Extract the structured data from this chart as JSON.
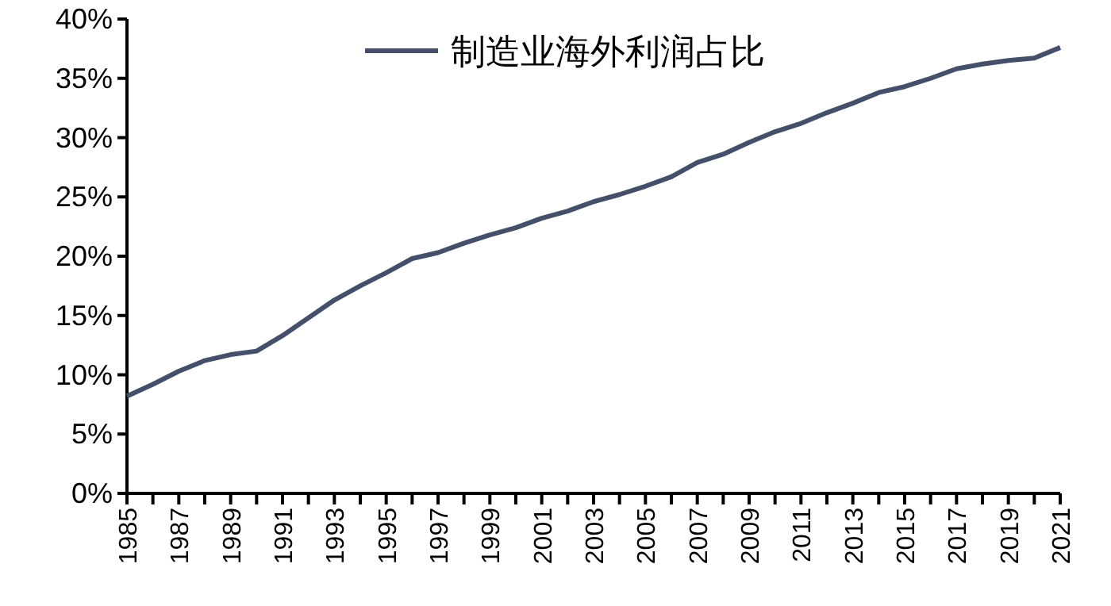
{
  "chart_data": {
    "type": "line",
    "categories": [
      "1985",
      null,
      "1987",
      null,
      "1989",
      null,
      "1991",
      null,
      "1993",
      null,
      "1995",
      null,
      "1997",
      null,
      "1999",
      null,
      "2001",
      null,
      "2003",
      null,
      "2005",
      null,
      "2007",
      null,
      "2009",
      null,
      "2011",
      null,
      "2013",
      null,
      "2015",
      null,
      "2017",
      null,
      "2019",
      null,
      "2021"
    ],
    "series": [
      {
        "name": "制造业海外利润占比",
        "color": "#44506a",
        "values": [
          8.2,
          9.2,
          10.3,
          11.2,
          11.7,
          12.0,
          13.3,
          14.8,
          16.3,
          17.5,
          18.6,
          19.8,
          20.3,
          21.1,
          21.8,
          22.4,
          23.2,
          23.8,
          24.6,
          25.2,
          25.9,
          26.7,
          27.9,
          28.6,
          29.6,
          30.5,
          31.2,
          32.1,
          32.9,
          33.8,
          34.3,
          35.0,
          35.8,
          36.2,
          36.5,
          36.7,
          37.6
        ]
      }
    ],
    "ylim": [
      0,
      40
    ],
    "yticks": [
      {
        "value": 0,
        "label": "0%"
      },
      {
        "value": 5,
        "label": "5%"
      },
      {
        "value": 10,
        "label": "10%"
      },
      {
        "value": 15,
        "label": "15%"
      },
      {
        "value": 20,
        "label": "20%"
      },
      {
        "value": 25,
        "label": "25%"
      },
      {
        "value": 30,
        "label": "30%"
      },
      {
        "value": 35,
        "label": "35%"
      },
      {
        "value": 40,
        "label": "40%"
      }
    ],
    "legend": "top",
    "grid": false,
    "marker": "none",
    "line_style": "solid"
  }
}
